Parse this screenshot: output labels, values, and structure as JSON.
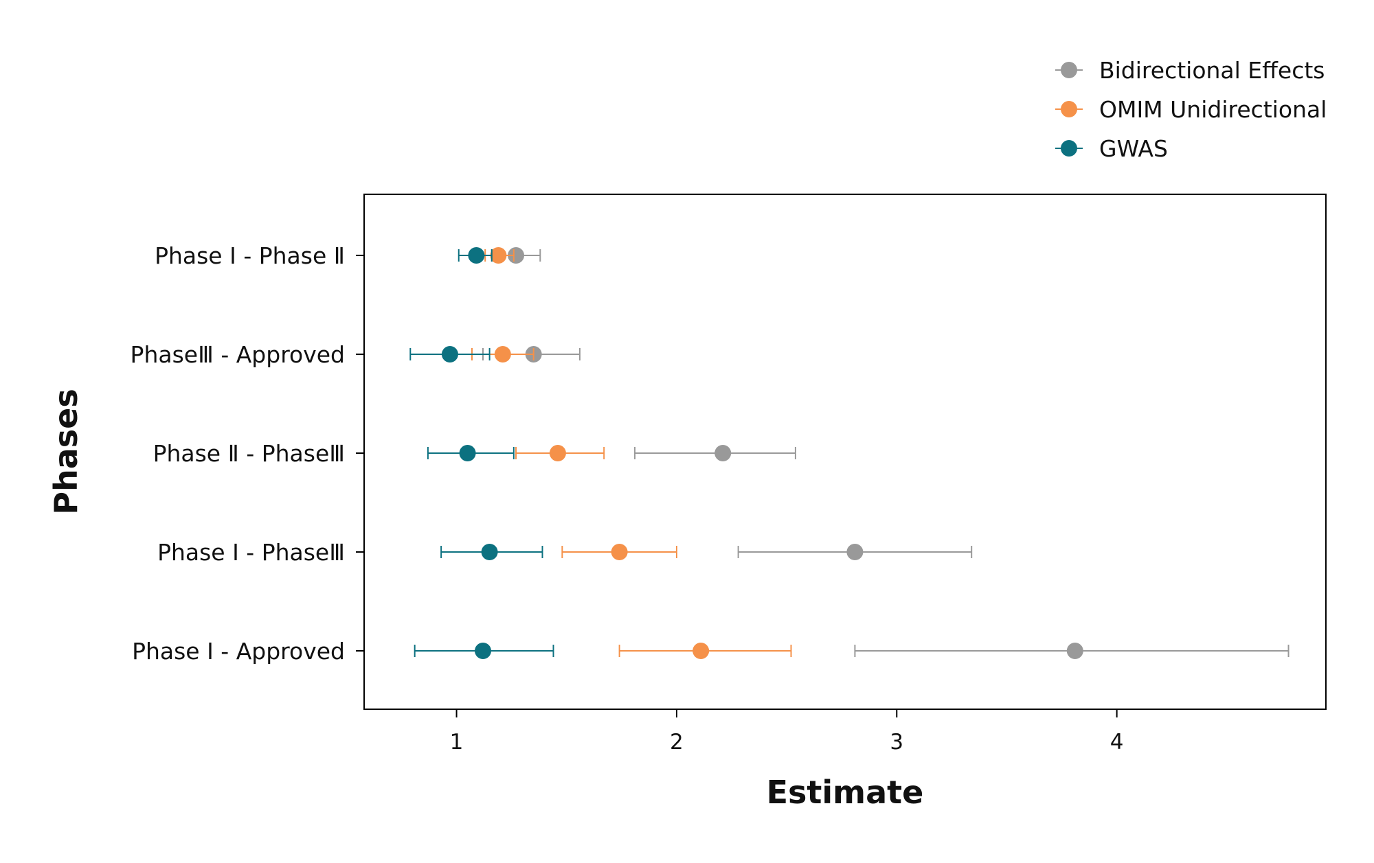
{
  "chart_data": {
    "type": "scatter",
    "subtype": "forest-plot",
    "title": "",
    "xlabel": "Estimate",
    "ylabel": "Phases",
    "xlim": [
      0.58,
      4.95
    ],
    "xticks": [
      1,
      2,
      3,
      4
    ],
    "grid": false,
    "legend_position": "top-right",
    "categories": [
      "Phase Ⅰ - Phase Ⅱ",
      "PhaseⅢ - Approved",
      "Phase Ⅱ - PhaseⅢ",
      "Phase Ⅰ - PhaseⅢ",
      "Phase Ⅰ - Approved"
    ],
    "series": [
      {
        "name": "Bidirectional Effects",
        "color": "#999999",
        "estimate": [
          1.27,
          1.35,
          2.21,
          2.81,
          3.81
        ],
        "lower": [
          1.16,
          1.12,
          1.81,
          2.28,
          2.81
        ],
        "upper": [
          1.38,
          1.56,
          2.54,
          3.34,
          4.78
        ]
      },
      {
        "name": "OMIM Unidirectional",
        "color": "#F59149",
        "estimate": [
          1.19,
          1.21,
          1.46,
          1.74,
          2.11
        ],
        "lower": [
          1.13,
          1.07,
          1.27,
          1.48,
          1.74
        ],
        "upper": [
          1.26,
          1.35,
          1.67,
          2.0,
          2.52
        ]
      },
      {
        "name": "GWAS",
        "color": "#0C7180",
        "estimate": [
          1.09,
          0.97,
          1.05,
          1.15,
          1.12
        ],
        "lower": [
          1.01,
          0.79,
          0.87,
          0.93,
          0.81
        ],
        "upper": [
          1.16,
          1.15,
          1.26,
          1.39,
          1.44
        ]
      }
    ]
  }
}
